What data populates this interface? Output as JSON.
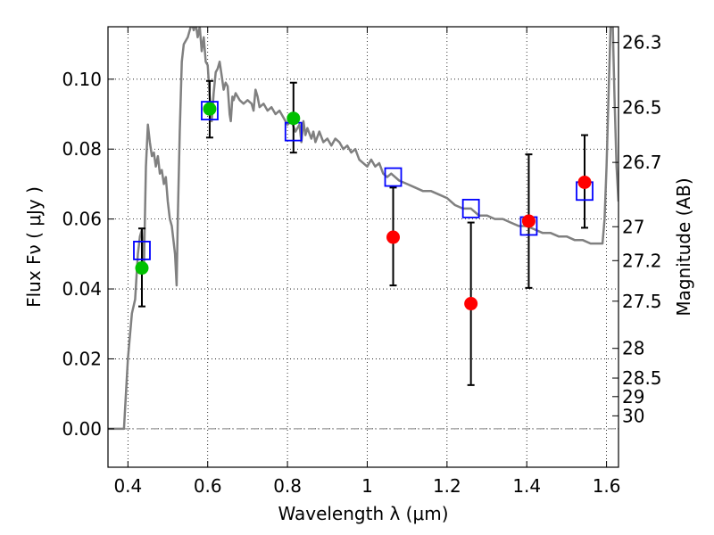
{
  "chart_data": {
    "type": "scatter",
    "xlabel": "Wavelength  λ (μm)",
    "ylabel": "Flux  Fν ( μJy )",
    "ylabel_right": "Magnitude (AB)",
    "xlim": [
      0.35,
      1.63
    ],
    "ylim": [
      -0.011,
      0.115
    ],
    "x_ticks": [
      0.4,
      0.6,
      0.8,
      1.0,
      1.2,
      1.4,
      1.6
    ],
    "x_tick_labels": [
      "0.4",
      "0.6",
      "0.8",
      "1",
      "1.2",
      "1.4",
      "1.6"
    ],
    "y_ticks": [
      0.0,
      0.02,
      0.04,
      0.06,
      0.08,
      0.1
    ],
    "y_tick_labels": [
      "0.00",
      "0.02",
      "0.04",
      "0.06",
      "0.08",
      "0.10"
    ],
    "right_ticks": [
      {
        "label": "26.3",
        "flux": 0.1105
      },
      {
        "label": "26.5",
        "flux": 0.0919
      },
      {
        "label": "26.7",
        "flux": 0.0762
      },
      {
        "label": "27",
        "flux": 0.0578
      },
      {
        "label": "27.2",
        "flux": 0.0481
      },
      {
        "label": "27.5",
        "flux": 0.0365
      },
      {
        "label": "28",
        "flux": 0.023
      },
      {
        "label": "28.5",
        "flux": 0.0145
      },
      {
        "label": "29",
        "flux": 0.0092
      },
      {
        "label": "30",
        "flux": 0.0037
      }
    ],
    "grid": true,
    "colors": {
      "model": "#808080",
      "model_phot": "#0000ff",
      "detected": "#00c000",
      "other": "#ff0000",
      "errorbar": "#000000",
      "zero_line": "#808080"
    },
    "series": [
      {
        "kind": "line",
        "points": [
          [
            0.35,
            0.0
          ],
          [
            0.39,
            0.0
          ],
          [
            0.395,
            0.01
          ],
          [
            0.4,
            0.02
          ],
          [
            0.41,
            0.033
          ],
          [
            0.418,
            0.037
          ],
          [
            0.425,
            0.05
          ],
          [
            0.43,
            0.055
          ],
          [
            0.435,
            0.057
          ],
          [
            0.44,
            0.045
          ],
          [
            0.445,
            0.075
          ],
          [
            0.45,
            0.087
          ],
          [
            0.455,
            0.082
          ],
          [
            0.46,
            0.078
          ],
          [
            0.465,
            0.079
          ],
          [
            0.47,
            0.075
          ],
          [
            0.475,
            0.078
          ],
          [
            0.48,
            0.073
          ],
          [
            0.485,
            0.074
          ],
          [
            0.49,
            0.07
          ],
          [
            0.495,
            0.072
          ],
          [
            0.5,
            0.065
          ],
          [
            0.505,
            0.06
          ],
          [
            0.51,
            0.058
          ],
          [
            0.518,
            0.05
          ],
          [
            0.522,
            0.041
          ],
          [
            0.525,
            0.06
          ],
          [
            0.53,
            0.085
          ],
          [
            0.535,
            0.105
          ],
          [
            0.54,
            0.11
          ],
          [
            0.55,
            0.112
          ],
          [
            0.56,
            0.116
          ],
          [
            0.565,
            0.114
          ],
          [
            0.57,
            0.116
          ],
          [
            0.575,
            0.112
          ],
          [
            0.58,
            0.115
          ],
          [
            0.585,
            0.108
          ],
          [
            0.59,
            0.112
          ],
          [
            0.595,
            0.105
          ],
          [
            0.6,
            0.104
          ],
          [
            0.605,
            0.095
          ],
          [
            0.61,
            0.088
          ],
          [
            0.615,
            0.096
          ],
          [
            0.62,
            0.102
          ],
          [
            0.625,
            0.103
          ],
          [
            0.63,
            0.105
          ],
          [
            0.635,
            0.101
          ],
          [
            0.64,
            0.097
          ],
          [
            0.645,
            0.099
          ],
          [
            0.65,
            0.098
          ],
          [
            0.655,
            0.09
          ],
          [
            0.658,
            0.088
          ],
          [
            0.662,
            0.095
          ],
          [
            0.665,
            0.094
          ],
          [
            0.67,
            0.096
          ],
          [
            0.68,
            0.094
          ],
          [
            0.69,
            0.093
          ],
          [
            0.7,
            0.094
          ],
          [
            0.71,
            0.093
          ],
          [
            0.715,
            0.091
          ],
          [
            0.72,
            0.097
          ],
          [
            0.725,
            0.095
          ],
          [
            0.73,
            0.092
          ],
          [
            0.74,
            0.093
          ],
          [
            0.75,
            0.091
          ],
          [
            0.76,
            0.092
          ],
          [
            0.77,
            0.09
          ],
          [
            0.78,
            0.091
          ],
          [
            0.79,
            0.089
          ],
          [
            0.8,
            0.087
          ],
          [
            0.81,
            0.088
          ],
          [
            0.82,
            0.085
          ],
          [
            0.83,
            0.087
          ],
          [
            0.835,
            0.082
          ],
          [
            0.84,
            0.088
          ],
          [
            0.845,
            0.084
          ],
          [
            0.85,
            0.086
          ],
          [
            0.86,
            0.083
          ],
          [
            0.865,
            0.085
          ],
          [
            0.87,
            0.082
          ],
          [
            0.88,
            0.085
          ],
          [
            0.89,
            0.082
          ],
          [
            0.9,
            0.083
          ],
          [
            0.91,
            0.081
          ],
          [
            0.92,
            0.083
          ],
          [
            0.93,
            0.082
          ],
          [
            0.94,
            0.08
          ],
          [
            0.95,
            0.081
          ],
          [
            0.96,
            0.079
          ],
          [
            0.97,
            0.08
          ],
          [
            0.98,
            0.077
          ],
          [
            0.99,
            0.076
          ],
          [
            1.0,
            0.075
          ],
          [
            1.01,
            0.077
          ],
          [
            1.02,
            0.075
          ],
          [
            1.03,
            0.076
          ],
          [
            1.04,
            0.073
          ],
          [
            1.05,
            0.072
          ],
          [
            1.06,
            0.073
          ],
          [
            1.08,
            0.071
          ],
          [
            1.1,
            0.07
          ],
          [
            1.12,
            0.069
          ],
          [
            1.14,
            0.068
          ],
          [
            1.16,
            0.068
          ],
          [
            1.18,
            0.067
          ],
          [
            1.2,
            0.066
          ],
          [
            1.22,
            0.064
          ],
          [
            1.24,
            0.063
          ],
          [
            1.26,
            0.063
          ],
          [
            1.28,
            0.061
          ],
          [
            1.3,
            0.061
          ],
          [
            1.32,
            0.06
          ],
          [
            1.34,
            0.06
          ],
          [
            1.36,
            0.059
          ],
          [
            1.38,
            0.058
          ],
          [
            1.4,
            0.058
          ],
          [
            1.42,
            0.057
          ],
          [
            1.44,
            0.056
          ],
          [
            1.46,
            0.056
          ],
          [
            1.48,
            0.055
          ],
          [
            1.5,
            0.055
          ],
          [
            1.52,
            0.054
          ],
          [
            1.54,
            0.054
          ],
          [
            1.56,
            0.053
          ],
          [
            1.58,
            0.053
          ],
          [
            1.59,
            0.053
          ],
          [
            1.595,
            0.06
          ],
          [
            1.6,
            0.075
          ],
          [
            1.605,
            0.095
          ],
          [
            1.61,
            0.115
          ],
          [
            1.615,
            0.118
          ],
          [
            1.62,
            0.095
          ],
          [
            1.625,
            0.075
          ],
          [
            1.63,
            0.065
          ]
        ]
      },
      {
        "kind": "scatter",
        "marker": "open-square",
        "x": [
          0.435,
          0.605,
          0.815,
          1.065,
          1.26,
          1.405,
          1.545
        ],
        "y": [
          0.051,
          0.091,
          0.085,
          0.072,
          0.063,
          0.058,
          0.068
        ]
      },
      {
        "kind": "scatter",
        "marker": "filled-circle",
        "x": [
          0.435,
          0.605,
          0.815
        ],
        "y": [
          0.046,
          0.0915,
          0.0888
        ],
        "yerr_low": [
          0.035,
          0.0833,
          0.079
        ],
        "yerr_high": [
          0.0573,
          0.0995,
          0.099
        ]
      },
      {
        "kind": "scatter",
        "marker": "filled-circle",
        "x": [
          1.065,
          1.26,
          1.405,
          1.545
        ],
        "y": [
          0.0548,
          0.0358,
          0.0594,
          0.0705
        ],
        "yerr_low": [
          0.041,
          0.0125,
          0.0403,
          0.0575
        ],
        "yerr_high": [
          0.069,
          0.059,
          0.0785,
          0.084
        ]
      }
    ]
  }
}
